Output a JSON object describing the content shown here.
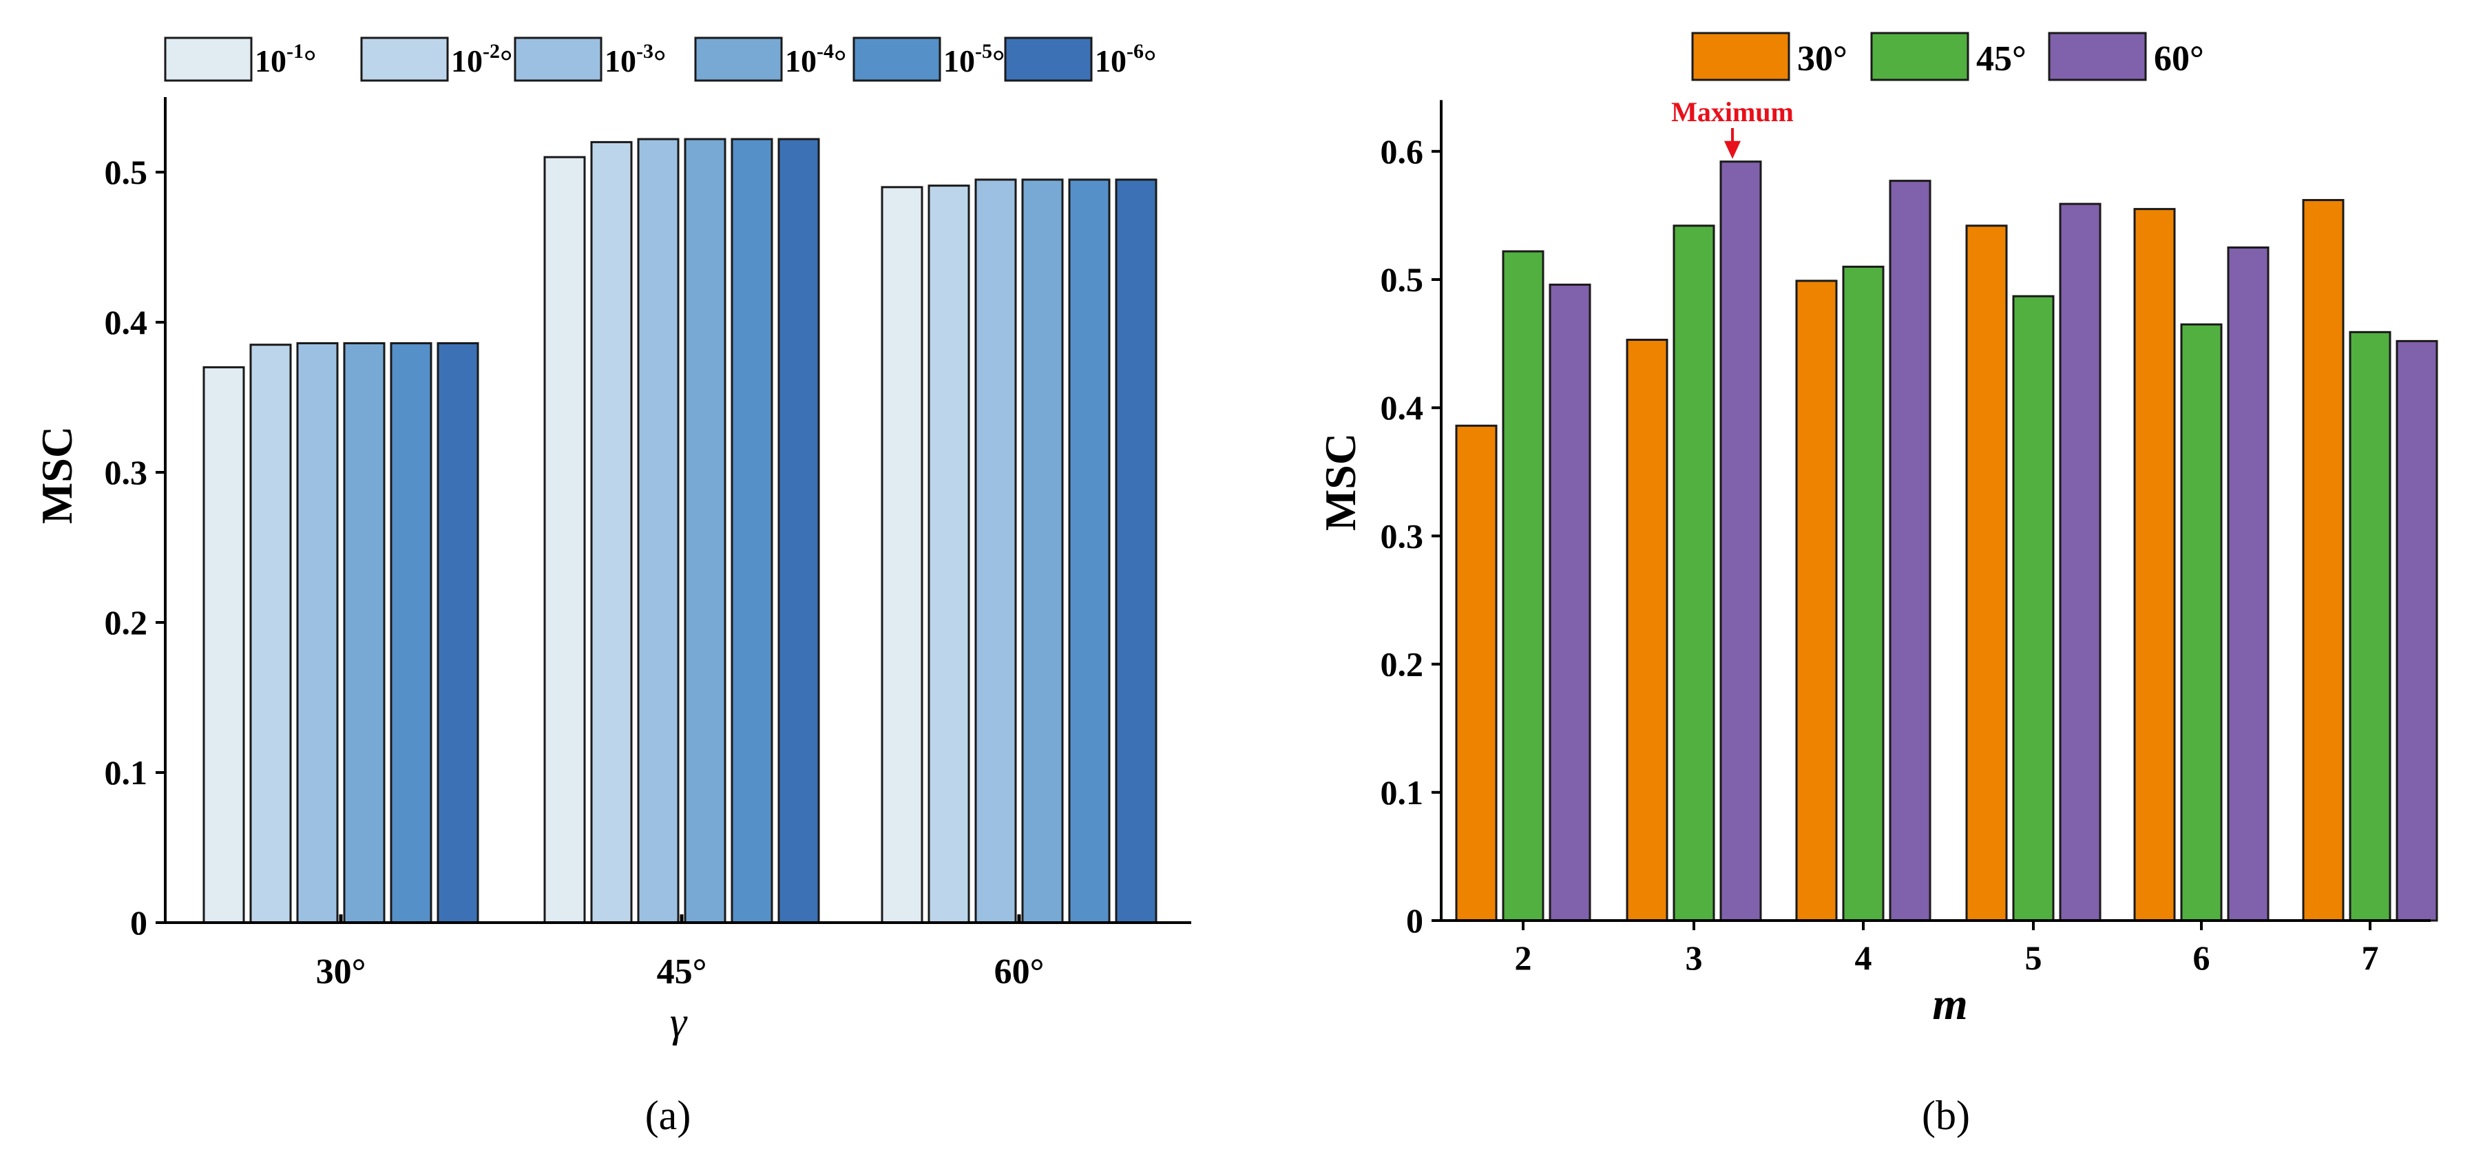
{
  "colors": {
    "scale_a": [
      "#e0ecf2",
      "#bdd5ea",
      "#9cc0e1",
      "#78a9d5",
      "#5590c9",
      "#3c72b5"
    ],
    "series_b": [
      "#ee8300",
      "#52b040",
      "#8061ab"
    ],
    "annotation": "#e8101a",
    "bar_edge": "#1a1a1a"
  },
  "chart_data": [
    {
      "type": "bar",
      "panel_label": "(a)",
      "title": "",
      "xlabel": "γ",
      "ylabel": "MSC",
      "categories": [
        "30°",
        "45°",
        "60°"
      ],
      "ylim": [
        0,
        0.55
      ],
      "yticks": [
        "0",
        "0.1",
        "0.2",
        "0.3",
        "0.4",
        "0.5"
      ],
      "ytick_values": [
        0,
        0.1,
        0.2,
        0.3,
        0.4,
        0.5
      ],
      "legend_position": "top",
      "series": [
        {
          "name": "10⁻¹°",
          "base": "10",
          "exp": "-1",
          "unit": "°",
          "values": [
            0.37,
            0.51,
            0.49
          ]
        },
        {
          "name": "10⁻²°",
          "base": "10",
          "exp": "-2",
          "unit": "°",
          "values": [
            0.385,
            0.52,
            0.491
          ]
        },
        {
          "name": "10⁻³°",
          "base": "10",
          "exp": "-3",
          "unit": "°",
          "values": [
            0.386,
            0.522,
            0.495
          ]
        },
        {
          "name": "10⁻⁴°",
          "base": "10",
          "exp": "-4",
          "unit": "°",
          "values": [
            0.386,
            0.522,
            0.495
          ]
        },
        {
          "name": "10⁻⁵°",
          "base": "10",
          "exp": "-5",
          "unit": "°",
          "values": [
            0.386,
            0.522,
            0.495
          ]
        },
        {
          "name": "10⁻⁶°",
          "base": "10",
          "exp": "-6",
          "unit": "°",
          "values": [
            0.386,
            0.522,
            0.495
          ]
        }
      ]
    },
    {
      "type": "bar",
      "panel_label": "(b)",
      "title": "",
      "xlabel": "m",
      "ylabel": "MSC",
      "categories": [
        "2",
        "3",
        "4",
        "5",
        "6",
        "7"
      ],
      "ylim": [
        0,
        0.64
      ],
      "yticks": [
        "0",
        "0.1",
        "0.2",
        "0.3",
        "0.4",
        "0.5",
        "0.6"
      ],
      "ytick_values": [
        0,
        0.1,
        0.2,
        0.3,
        0.4,
        0.5,
        0.6
      ],
      "legend_position": "top",
      "series": [
        {
          "name": "30°",
          "values": [
            0.386,
            0.453,
            0.499,
            0.542,
            0.555,
            0.562
          ]
        },
        {
          "name": "45°",
          "values": [
            0.522,
            0.542,
            0.51,
            0.487,
            0.465,
            0.459
          ]
        },
        {
          "name": "60°",
          "values": [
            0.496,
            0.592,
            0.577,
            0.559,
            0.525,
            0.452
          ]
        }
      ],
      "annotation": {
        "text": "Maximum",
        "category_index": 1,
        "series_index": 2
      }
    }
  ]
}
